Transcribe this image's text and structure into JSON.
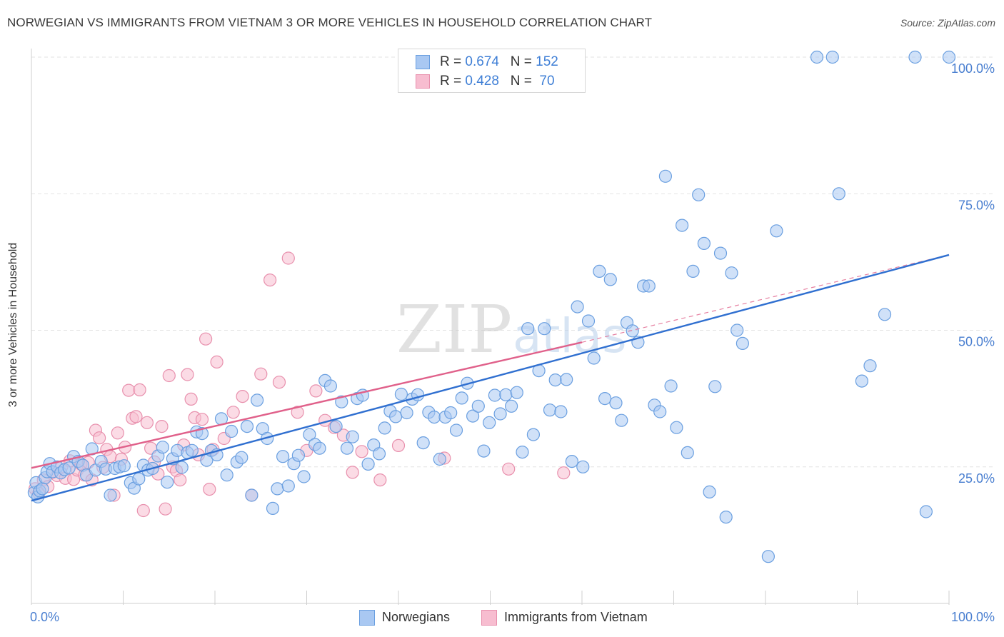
{
  "title": "NORWEGIAN VS IMMIGRANTS FROM VIETNAM 3 OR MORE VEHICLES IN HOUSEHOLD CORRELATION CHART",
  "source": "Source: ZipAtlas.com",
  "legend_top": {
    "rows": [
      {
        "r_label": "R = ",
        "r_value": "0.674",
        "n_label": "N = ",
        "n_value": "152"
      },
      {
        "r_label": "R = ",
        "r_value": "0.428",
        "n_label": "N = ",
        "n_value": " 70"
      }
    ]
  },
  "legend_bottom": [
    "Norwegians",
    "Immigrants from Vietnam"
  ],
  "colors": {
    "norwegians_fill": "#a9c8f2",
    "norwegians_stroke": "#6a9fe0",
    "norwegians_line": "#2f6fd0",
    "vietnam_fill": "#f7bdd0",
    "vietnam_stroke": "#e890ad",
    "vietnam_line": "#e0608a",
    "grid": "#e3e3e3",
    "tick_label": "#4a7fd0"
  },
  "chart_data": {
    "type": "scatter",
    "title": "NORWEGIAN VS IMMIGRANTS FROM VIETNAM 3 OR MORE VEHICLES IN HOUSEHOLD CORRELATION CHART",
    "xlabel": "",
    "ylabel": "3 or more Vehicles in Household",
    "xlim": [
      0,
      100
    ],
    "ylim": [
      0,
      102
    ],
    "x_tick_labels": [
      "0.0%",
      "100.0%"
    ],
    "y_tick_labels": [
      "25.0%",
      "50.0%",
      "75.0%",
      "100.0%"
    ],
    "y_ticks": [
      25,
      50,
      75,
      100
    ],
    "grid": true,
    "legend_position": "top-center",
    "watermark": "ZIPatlas",
    "series": [
      {
        "name": "Norwegians",
        "r": 0.674,
        "n": 152,
        "trend": {
          "x": [
            0,
            100
          ],
          "y": [
            18.8,
            63.8
          ]
        },
        "points": [
          [
            0.3,
            20.3
          ],
          [
            0.5,
            22.1
          ],
          [
            0.7,
            19.5
          ],
          [
            0.9,
            20.6
          ],
          [
            1.2,
            21.0
          ],
          [
            1.5,
            23.0
          ],
          [
            1.7,
            24.1
          ],
          [
            2.0,
            25.6
          ],
          [
            2.3,
            24.1
          ],
          [
            2.8,
            25.0
          ],
          [
            3.2,
            23.9
          ],
          [
            3.6,
            24.5
          ],
          [
            4.1,
            24.8
          ],
          [
            4.6,
            26.9
          ],
          [
            5.1,
            26.0
          ],
          [
            5.6,
            25.3
          ],
          [
            6.0,
            23.5
          ],
          [
            6.6,
            28.3
          ],
          [
            7.0,
            24.4
          ],
          [
            7.6,
            26.0
          ],
          [
            8.1,
            24.6
          ],
          [
            8.6,
            19.8
          ],
          [
            9.1,
            24.7
          ],
          [
            9.6,
            25.0
          ],
          [
            10.1,
            25.2
          ],
          [
            10.8,
            22.1
          ],
          [
            11.2,
            21.1
          ],
          [
            11.7,
            22.8
          ],
          [
            12.2,
            25.3
          ],
          [
            12.7,
            24.4
          ],
          [
            13.2,
            24.7
          ],
          [
            13.8,
            27.0
          ],
          [
            14.3,
            28.6
          ],
          [
            14.8,
            22.2
          ],
          [
            15.4,
            26.5
          ],
          [
            15.9,
            28.0
          ],
          [
            16.4,
            24.9
          ],
          [
            17.0,
            27.6
          ],
          [
            17.5,
            28.0
          ],
          [
            18.0,
            31.4
          ],
          [
            18.6,
            31.1
          ],
          [
            19.1,
            26.2
          ],
          [
            19.6,
            28.0
          ],
          [
            20.2,
            27.2
          ],
          [
            20.7,
            33.8
          ],
          [
            21.3,
            23.5
          ],
          [
            21.8,
            31.5
          ],
          [
            22.4,
            25.9
          ],
          [
            22.9,
            26.7
          ],
          [
            23.5,
            32.4
          ],
          [
            24.0,
            19.8
          ],
          [
            24.6,
            37.2
          ],
          [
            25.2,
            32.0
          ],
          [
            25.7,
            30.2
          ],
          [
            26.3,
            17.4
          ],
          [
            26.8,
            21.0
          ],
          [
            27.4,
            26.9
          ],
          [
            28.0,
            21.5
          ],
          [
            28.6,
            25.6
          ],
          [
            29.1,
            27.1
          ],
          [
            29.7,
            23.2
          ],
          [
            30.3,
            30.9
          ],
          [
            30.9,
            29.1
          ],
          [
            31.4,
            28.4
          ],
          [
            32.0,
            40.8
          ],
          [
            32.6,
            39.8
          ],
          [
            33.2,
            32.4
          ],
          [
            33.8,
            36.9
          ],
          [
            34.4,
            28.4
          ],
          [
            35.0,
            30.5
          ],
          [
            35.5,
            37.5
          ],
          [
            36.1,
            38.1
          ],
          [
            36.7,
            25.5
          ],
          [
            37.3,
            29.0
          ],
          [
            37.9,
            27.4
          ],
          [
            38.5,
            32.1
          ],
          [
            39.1,
            35.2
          ],
          [
            39.7,
            34.2
          ],
          [
            40.3,
            38.3
          ],
          [
            40.9,
            34.9
          ],
          [
            41.5,
            37.4
          ],
          [
            42.1,
            38.2
          ],
          [
            42.7,
            29.4
          ],
          [
            43.3,
            35.0
          ],
          [
            43.9,
            34.1
          ],
          [
            44.5,
            26.4
          ],
          [
            45.1,
            34.1
          ],
          [
            45.7,
            34.9
          ],
          [
            46.3,
            31.7
          ],
          [
            46.9,
            37.6
          ],
          [
            47.5,
            40.3
          ],
          [
            48.1,
            34.3
          ],
          [
            48.7,
            36.1
          ],
          [
            49.3,
            27.9
          ],
          [
            49.9,
            33.1
          ],
          [
            50.5,
            38.1
          ],
          [
            51.1,
            34.7
          ],
          [
            51.7,
            38.2
          ],
          [
            52.3,
            36.1
          ],
          [
            52.9,
            38.6
          ],
          [
            53.5,
            27.7
          ],
          [
            54.1,
            50.3
          ],
          [
            54.7,
            30.9
          ],
          [
            55.3,
            42.6
          ],
          [
            55.9,
            50.3
          ],
          [
            56.5,
            35.4
          ],
          [
            57.1,
            40.9
          ],
          [
            57.7,
            35.1
          ],
          [
            58.3,
            41.0
          ],
          [
            58.9,
            26.0
          ],
          [
            59.5,
            54.3
          ],
          [
            60.1,
            25.0
          ],
          [
            60.7,
            51.7
          ],
          [
            61.3,
            44.9
          ],
          [
            61.9,
            60.8
          ],
          [
            62.5,
            37.5
          ],
          [
            63.1,
            59.3
          ],
          [
            63.7,
            36.7
          ],
          [
            64.3,
            33.5
          ],
          [
            64.9,
            51.4
          ],
          [
            65.5,
            49.9
          ],
          [
            66.1,
            47.8
          ],
          [
            66.7,
            58.1
          ],
          [
            67.3,
            58.1
          ],
          [
            67.9,
            36.3
          ],
          [
            68.5,
            35.1
          ],
          [
            69.1,
            78.2
          ],
          [
            69.7,
            39.8
          ],
          [
            70.3,
            32.2
          ],
          [
            70.9,
            69.2
          ],
          [
            71.5,
            27.6
          ],
          [
            72.1,
            60.8
          ],
          [
            72.7,
            74.8
          ],
          [
            73.3,
            65.9
          ],
          [
            73.9,
            20.4
          ],
          [
            74.5,
            39.7
          ],
          [
            75.1,
            64.1
          ],
          [
            75.7,
            15.8
          ],
          [
            76.3,
            60.5
          ],
          [
            76.9,
            50.0
          ],
          [
            77.5,
            47.6
          ],
          [
            80.3,
            8.6
          ],
          [
            81.2,
            68.2
          ],
          [
            85.6,
            100.0
          ],
          [
            87.3,
            100.0
          ],
          [
            88.0,
            75.0
          ],
          [
            90.5,
            40.7
          ],
          [
            91.4,
            43.5
          ],
          [
            93.0,
            52.9
          ],
          [
            96.3,
            100.0
          ],
          [
            97.5,
            16.8
          ],
          [
            100.0,
            100.0
          ]
        ]
      },
      {
        "name": "Immigrants from Vietnam",
        "r": 0.428,
        "n": 70,
        "trend": {
          "x": [
            0,
            60
          ],
          "y": [
            24.8,
            47.8
          ]
        },
        "trend_dashed_extension": {
          "x": [
            60,
            100
          ],
          "y": [
            47.8,
            63.8
          ]
        },
        "points": [
          [
            0.4,
            21.0
          ],
          [
            0.8,
            20.2
          ],
          [
            1.3,
            22.6
          ],
          [
            1.8,
            21.4
          ],
          [
            2.3,
            24.0
          ],
          [
            2.8,
            23.4
          ],
          [
            3.3,
            25.0
          ],
          [
            3.7,
            22.9
          ],
          [
            4.2,
            26.1
          ],
          [
            4.6,
            22.7
          ],
          [
            5.0,
            24.4
          ],
          [
            5.4,
            25.5
          ],
          [
            5.8,
            23.5
          ],
          [
            6.2,
            25.8
          ],
          [
            6.6,
            22.6
          ],
          [
            7.0,
            31.7
          ],
          [
            7.4,
            30.3
          ],
          [
            7.8,
            24.9
          ],
          [
            8.2,
            28.2
          ],
          [
            8.6,
            26.9
          ],
          [
            9.0,
            19.8
          ],
          [
            9.4,
            31.2
          ],
          [
            9.8,
            26.4
          ],
          [
            10.2,
            28.6
          ],
          [
            10.6,
            39.0
          ],
          [
            11.0,
            33.9
          ],
          [
            11.4,
            34.2
          ],
          [
            11.8,
            39.1
          ],
          [
            12.2,
            17.0
          ],
          [
            12.6,
            33.1
          ],
          [
            13.0,
            28.4
          ],
          [
            13.4,
            25.9
          ],
          [
            13.8,
            23.7
          ],
          [
            14.2,
            32.4
          ],
          [
            14.6,
            17.3
          ],
          [
            15.0,
            41.7
          ],
          [
            15.4,
            25.0
          ],
          [
            15.8,
            24.3
          ],
          [
            16.2,
            22.6
          ],
          [
            16.6,
            29.0
          ],
          [
            17.0,
            41.9
          ],
          [
            17.4,
            37.4
          ],
          [
            17.8,
            34.0
          ],
          [
            18.2,
            27.2
          ],
          [
            18.6,
            33.7
          ],
          [
            19.0,
            48.4
          ],
          [
            19.4,
            20.9
          ],
          [
            19.8,
            28.2
          ],
          [
            20.2,
            44.2
          ],
          [
            21.0,
            30.2
          ],
          [
            22.0,
            35.0
          ],
          [
            23.0,
            37.9
          ],
          [
            24.0,
            19.8
          ],
          [
            25.0,
            42.0
          ],
          [
            26.0,
            59.2
          ],
          [
            27.0,
            40.5
          ],
          [
            28.0,
            63.2
          ],
          [
            29.0,
            35.0
          ],
          [
            30.0,
            28.0
          ],
          [
            31.0,
            38.9
          ],
          [
            32.0,
            33.5
          ],
          [
            33.0,
            32.2
          ],
          [
            34.0,
            30.8
          ],
          [
            35.0,
            24.0
          ],
          [
            36.0,
            27.8
          ],
          [
            38.0,
            22.6
          ],
          [
            40.0,
            28.9
          ],
          [
            45.0,
            26.6
          ],
          [
            52.0,
            24.6
          ],
          [
            58.0,
            23.9
          ]
        ]
      }
    ]
  }
}
